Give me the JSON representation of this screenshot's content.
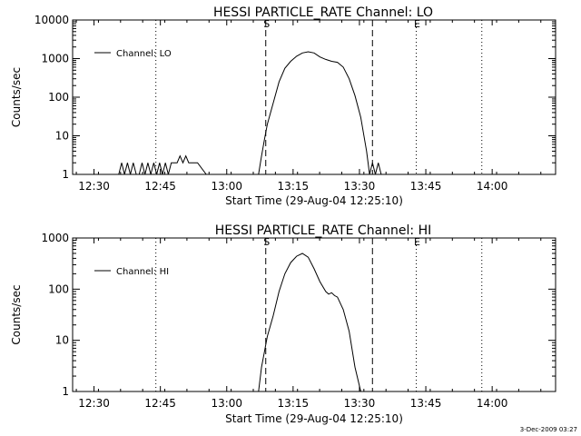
{
  "footer_timestamp": "3-Dec-2009 03:27",
  "chart_data": [
    {
      "type": "line",
      "title": "HESSI PARTICLE_RATE Channel: LO",
      "xlabel": "Start Time (29-Aug-04 12:25:10)",
      "ylabel": "Counts/sec",
      "y_scale": "log",
      "ylim": [
        1,
        10000
      ],
      "xlim": [
        12.4194,
        14.2389
      ],
      "x_ticks": [
        12.5,
        12.75,
        13.0,
        13.25,
        13.5,
        13.75,
        14.0
      ],
      "x_tick_labels": [
        "12:30",
        "12:45",
        "13:00",
        "13:15",
        "13:30",
        "13:45",
        "14:00"
      ],
      "y_ticks": [
        1,
        10,
        100,
        1000,
        10000
      ],
      "y_tick_labels": [
        "1",
        "10",
        "100",
        "1000",
        "10000"
      ],
      "legend": {
        "position": "top-left",
        "entries": [
          "Channel: LO"
        ]
      },
      "markers": [
        {
          "time": 13.147,
          "label": "S",
          "style": "dashed"
        },
        {
          "time": 13.549,
          "label": "",
          "style": "dashed"
        },
        {
          "time": 13.714,
          "label": "E",
          "style": "dotted"
        },
        {
          "time": 12.733,
          "label": "",
          "style": "dotted"
        },
        {
          "time": 13.961,
          "label": "",
          "style": "dotted"
        }
      ],
      "series": [
        {
          "name": "Channel: LO",
          "x": [
            12.56,
            12.593,
            12.604,
            12.615,
            12.626,
            12.637,
            12.648,
            12.659,
            12.67,
            12.681,
            12.692,
            12.703,
            12.714,
            12.725,
            12.736,
            12.747,
            12.758,
            12.769,
            12.78,
            12.791,
            12.802,
            12.813,
            12.824,
            12.835,
            12.846,
            12.857,
            12.868,
            12.879,
            12.89,
            12.923,
            12.978,
            13.12,
            13.131,
            13.142,
            13.153,
            13.175,
            13.197,
            13.219,
            13.241,
            13.263,
            13.285,
            13.307,
            13.329,
            13.351,
            13.373,
            13.395,
            13.417,
            13.439,
            13.461,
            13.483,
            13.505,
            13.527,
            13.538,
            13.549,
            13.56,
            13.571,
            13.582,
            13.593
          ],
          "y": [
            1,
            1,
            2,
            1,
            2,
            1,
            2,
            1,
            1,
            2,
            1,
            2,
            1,
            2,
            1,
            2,
            1,
            2,
            1,
            2,
            2,
            2,
            3,
            2,
            3,
            2,
            2,
            2,
            2,
            1,
            1,
            1,
            3,
            8,
            20,
            70,
            250,
            560,
            850,
            1150,
            1400,
            1500,
            1400,
            1100,
            950,
            850,
            800,
            600,
            300,
            110,
            30,
            4,
            1,
            2,
            1,
            2,
            1,
            1
          ]
        }
      ]
    },
    {
      "type": "line",
      "title": "HESSI PARTICLE_RATE Channel: HI",
      "xlabel": "Start Time (29-Aug-04 12:25:10)",
      "ylabel": "Counts/sec",
      "y_scale": "log",
      "ylim": [
        1,
        1000
      ],
      "xlim": [
        12.4194,
        14.2389
      ],
      "x_ticks": [
        12.5,
        12.75,
        13.0,
        13.25,
        13.5,
        13.75,
        14.0
      ],
      "x_tick_labels": [
        "12:30",
        "12:45",
        "13:00",
        "13:15",
        "13:30",
        "13:45",
        "14:00"
      ],
      "y_ticks": [
        1,
        10,
        100,
        1000
      ],
      "y_tick_labels": [
        "1",
        "10",
        "100",
        "1000"
      ],
      "legend": {
        "position": "top-left",
        "entries": [
          "Channel: HI"
        ]
      },
      "markers": [
        {
          "time": 13.147,
          "label": "S",
          "style": "dashed"
        },
        {
          "time": 13.549,
          "label": "",
          "style": "dashed"
        },
        {
          "time": 13.714,
          "label": "E",
          "style": "dotted"
        },
        {
          "time": 12.733,
          "label": "",
          "style": "dotted"
        },
        {
          "time": 13.961,
          "label": "",
          "style": "dotted"
        }
      ],
      "series": [
        {
          "name": "Channel: HI",
          "x": [
            13.12,
            13.131,
            13.142,
            13.153,
            13.175,
            13.197,
            13.219,
            13.241,
            13.263,
            13.285,
            13.307,
            13.329,
            13.351,
            13.373,
            13.384,
            13.395,
            13.406,
            13.417,
            13.439,
            13.461,
            13.483,
            13.505
          ],
          "y": [
            1,
            3,
            6,
            12,
            30,
            90,
            200,
            330,
            440,
            500,
            420,
            250,
            140,
            90,
            80,
            85,
            75,
            70,
            40,
            15,
            3,
            1
          ]
        }
      ]
    }
  ]
}
